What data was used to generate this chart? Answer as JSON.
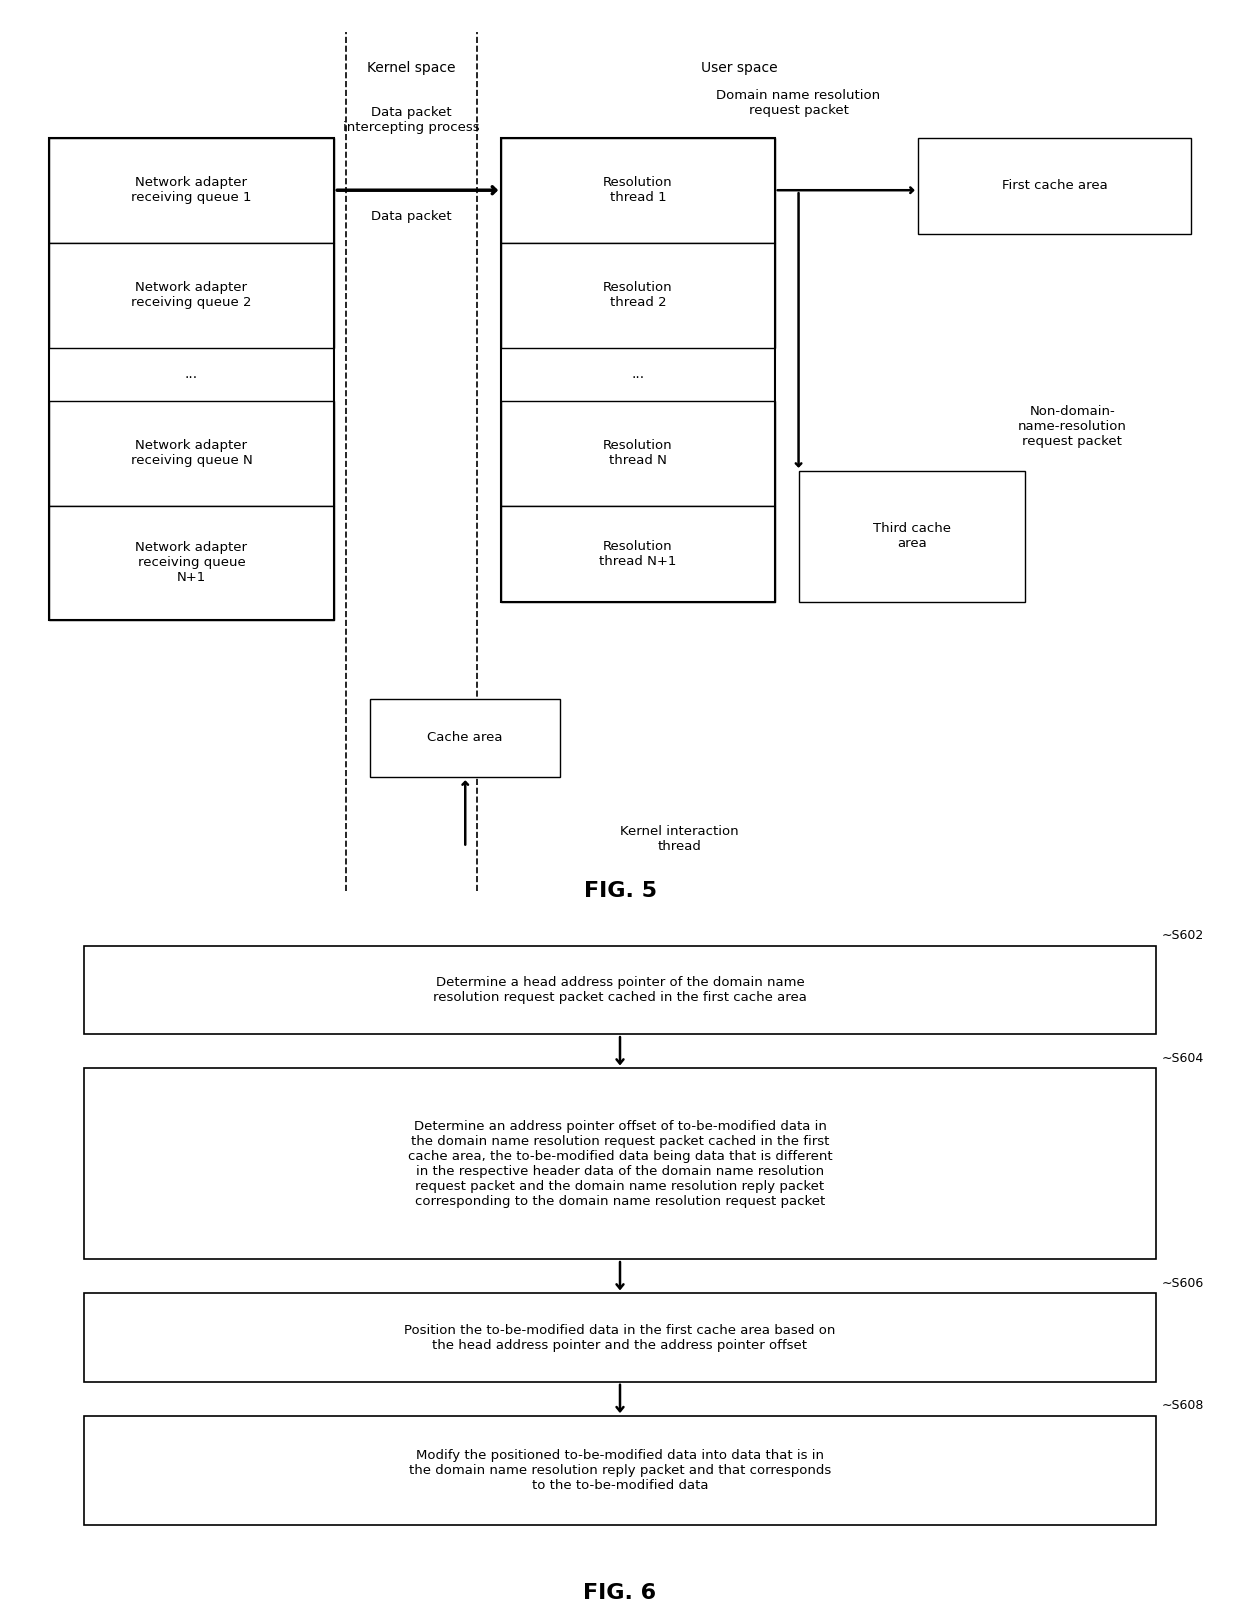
{
  "fig5": {
    "title": "FIG. 5",
    "kernel_space_label": "Kernel space",
    "user_space_label": "User space",
    "data_packet_intercepting": "Data packet\nintercepting process",
    "data_packet_label": "Data packet",
    "domain_name_resolution_label": "Domain name resolution\nrequest packet",
    "non_domain_label": "Non-domain-\nname-resolution\nrequest packet",
    "kernel_interaction_label": "Kernel interaction\nthread",
    "network_adapter_boxes": [
      "Network adapter\nreceiving queue 1",
      "Network adapter\nreceiving queue 2",
      "...",
      "Network adapter\nreceiving queue N",
      "Network adapter\nreceiving queue\nN+1"
    ],
    "resolution_thread_boxes": [
      "Resolution\nthread 1",
      "Resolution\nthread 2",
      "...",
      "Resolution\nthread N",
      "Resolution\nthread N+1"
    ],
    "cache_area_label": "Cache area",
    "first_cache_label": "First cache area",
    "third_cache_label": "Third cache\narea"
  },
  "fig6": {
    "title": "FIG. 6",
    "steps": [
      {
        "id": "S602",
        "text": "Determine a head address pointer of the domain name\nresolution request packet cached in the first cache area"
      },
      {
        "id": "S604",
        "text": "Determine an address pointer offset of to-be-modified data in\nthe domain name resolution request packet cached in the first\ncache area, the to-be-modified data being data that is different\nin the respective header data of the domain name resolution\nrequest packet and the domain name resolution reply packet\ncorresponding to the domain name resolution request packet"
      },
      {
        "id": "S606",
        "text": "Position the to-be-modified data in the first cache area based on\nthe head address pointer and the address pointer offset"
      },
      {
        "id": "S608",
        "text": "Modify the positioned to-be-modified data into data that is in\nthe domain name resolution reply packet and that corresponds\nto the to-be-modified data"
      }
    ]
  },
  "background_color": "#ffffff",
  "box_edge_color": "#000000",
  "text_color": "#000000"
}
